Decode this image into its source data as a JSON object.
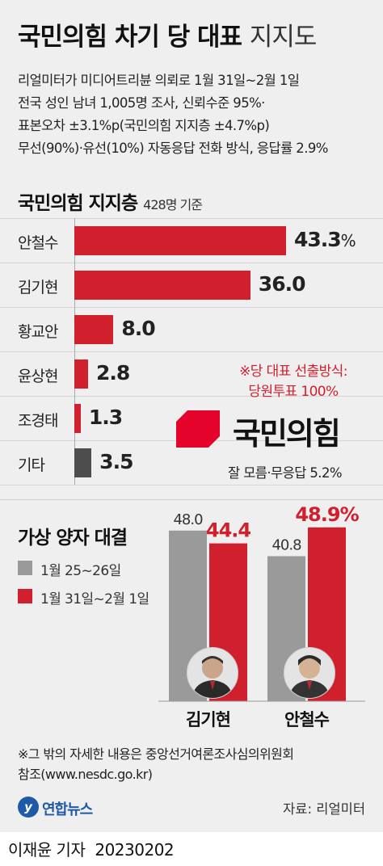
{
  "title": {
    "bold": "국민의힘 차기 당 대표",
    "light": "지지도"
  },
  "survey_info": [
    "리얼미터가 미디어트리뷴 의뢰로 1월 31일~2월 1일",
    "전국 성인 남녀 1,005명 조사, 신뢰수준 95%·",
    "표본오차 ±3.1%p(국민의힘 지지층 ±4.7%p)",
    "무선(90%)·유선(10%) 자동응답 전화 방식, 응답률 2.9%"
  ],
  "section1": {
    "title": "국민의힘 지지층",
    "note": "428명 기준"
  },
  "percent_sign": "%",
  "method_note": [
    "※당 대표 선출방식:",
    "당원투표 100%"
  ],
  "party_logo_text": "국민의힘",
  "unknown_note": "잘 모름·무응답 5.2%",
  "section2": {
    "title": "가상 양자 대결"
  },
  "legend": [
    {
      "label": "1월 25~26일",
      "color": "#9a9a9a"
    },
    {
      "label": "1월 31일~2월 1일",
      "color": "#d0202d"
    }
  ],
  "chart_data": [
    {
      "type": "bar",
      "orientation": "horizontal",
      "title": "국민의힘 지지층",
      "categories": [
        "안철수",
        "김기현",
        "황교안",
        "윤상현",
        "조경태",
        "기타"
      ],
      "values": [
        43.3,
        36.0,
        8.0,
        2.8,
        1.3,
        3.5
      ],
      "value_labels": [
        "43.3",
        "36.0",
        "8.0",
        "2.8",
        "1.3",
        "3.5"
      ],
      "unit": "%",
      "colors": [
        "#d0202d",
        "#d0202d",
        "#d0202d",
        "#d0202d",
        "#d0202d",
        "#4d4d4d"
      ]
    },
    {
      "type": "bar",
      "title": "가상 양자 대결",
      "categories": [
        "김기현",
        "안철수"
      ],
      "series": [
        {
          "name": "1월 25~26일",
          "values": [
            48.0,
            40.8
          ],
          "labels": [
            "48.0",
            "40.8"
          ],
          "color": "#9a9a9a"
        },
        {
          "name": "1월 31일~2월 1일",
          "values": [
            44.4,
            48.9
          ],
          "labels": [
            "44.4",
            "48.9"
          ],
          "color": "#d0202d"
        }
      ],
      "unit": "%"
    }
  ],
  "footnote": [
    "※그 밖의 자세한 내용은 중앙선거여론조사심의위원회",
    "참조(www.nesdc.go.kr)"
  ],
  "agency_logo": {
    "mark": "y",
    "text": "연합뉴스"
  },
  "source": "자료: 리얼미터",
  "credit": {
    "reporter": "이재윤 기자",
    "date": "20230202"
  }
}
